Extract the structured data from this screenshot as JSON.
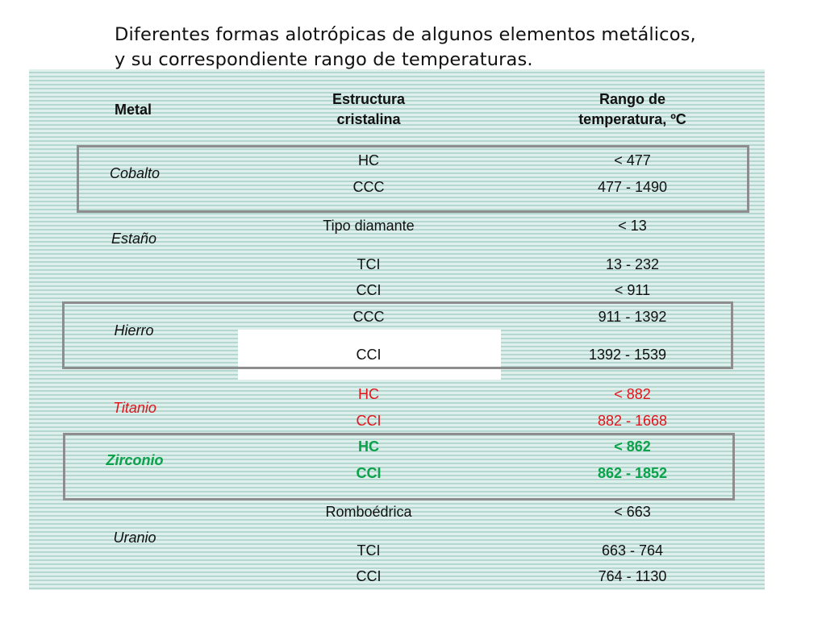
{
  "title": {
    "line1": "Diferentes formas alotrópicas de algunos elementos metálicos,",
    "line2": "y su correspondiente rango de temperaturas."
  },
  "table": {
    "headers": {
      "metal": "Metal",
      "structure_line1": "Estructura",
      "structure_line2": "cristalina",
      "range_line1": "Rango de",
      "range_line2": "temperatura, ºC"
    },
    "metals": [
      {
        "name": "Cobalto",
        "phases": [
          {
            "structure": "HC",
            "range": "< 477"
          },
          {
            "structure": "CCC",
            "range": "477 - 1490"
          }
        ]
      },
      {
        "name": "Estaño",
        "phases": [
          {
            "structure": "Tipo diamante",
            "range": "< 13"
          },
          {
            "structure": "TCI",
            "range": "13 - 232"
          }
        ]
      },
      {
        "name": "Hierro",
        "phases": [
          {
            "structure": "CCI",
            "range": "< 911"
          },
          {
            "structure": "CCC",
            "range": "911 - 1392"
          },
          {
            "structure": "CCI",
            "range": "1392 - 1539"
          }
        ]
      },
      {
        "name": "Titanio",
        "color": "#e0141b",
        "phases": [
          {
            "structure": "HC",
            "range": "< 882"
          },
          {
            "structure": "CCI",
            "range": "882 - 1668"
          }
        ]
      },
      {
        "name": "Zirconio",
        "color": "#0aa24a",
        "phases": [
          {
            "structure": "HC",
            "range": "< 862"
          },
          {
            "structure": "CCI",
            "range": "862 - 1852"
          }
        ]
      },
      {
        "name": "Uranio",
        "phases": [
          {
            "structure": "Romboédrica",
            "range": "< 663"
          },
          {
            "structure": "TCI",
            "range": "663 - 764"
          },
          {
            "structure": "CCI",
            "range": "764 - 1130"
          }
        ]
      }
    ]
  },
  "colors": {
    "panel_light": "#dff0ec",
    "panel_stripe": "#b4d7cf",
    "box_border": "#8d8d8d",
    "text": "#111111"
  }
}
